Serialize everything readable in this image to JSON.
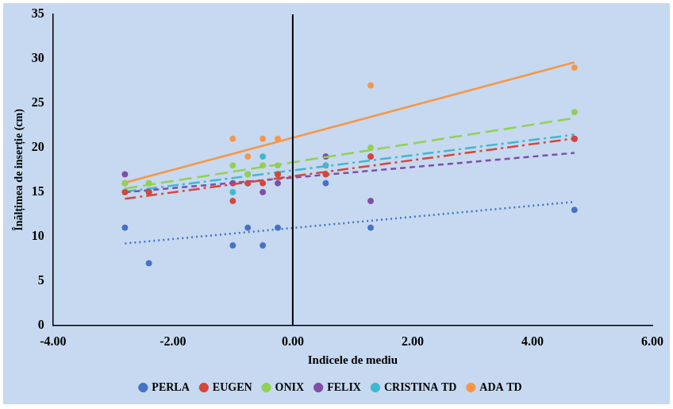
{
  "chart_data": {
    "type": "scatter",
    "x_label": "Indicele de mediu",
    "y_label": "Înălțimea de inserție (cm)",
    "x": [
      -2.8,
      -2.4,
      -1.0,
      -0.75,
      -0.5,
      -0.25,
      0.55,
      1.3,
      4.7
    ],
    "series": [
      {
        "name": "PERLA",
        "color": "#4472c4",
        "marker": "circle",
        "line_style": "dotted",
        "values": [
          11,
          7,
          9,
          11,
          9,
          11,
          16,
          11,
          13
        ]
      },
      {
        "name": "EUGEN",
        "color": "#d9453b",
        "marker": "circle",
        "line_style": "dashdot",
        "values": [
          15,
          15,
          14,
          16,
          16,
          17,
          17,
          19,
          21
        ]
      },
      {
        "name": "ONIX",
        "color": "#92d050",
        "marker": "circle",
        "line_style": "longdash",
        "values": [
          16,
          16,
          18,
          17,
          18,
          18,
          17,
          20,
          24
        ]
      },
      {
        "name": "FELIX",
        "color": "#7e4fa8",
        "marker": "circle",
        "line_style": "dashed",
        "values": [
          17,
          15,
          16,
          16,
          15,
          16,
          19,
          14,
          21
        ]
      },
      {
        "name": "CRISTINA TD",
        "color": "#3fb8d0",
        "marker": "circle",
        "line_style": "dashdot",
        "values": [
          15,
          15,
          15,
          17,
          19,
          17,
          18,
          19,
          21
        ]
      },
      {
        "name": "ADA TD",
        "color": "#f79646",
        "marker": "circle",
        "line_style": "solid",
        "values": [
          16,
          16,
          21,
          19,
          21,
          21,
          18,
          27,
          29
        ]
      }
    ],
    "xlim": [
      -4,
      6
    ],
    "xticks": [
      {
        "value": -4,
        "label": "-4.00"
      },
      {
        "value": -2,
        "label": "-2.00"
      },
      {
        "value": 0,
        "label": "0.00"
      },
      {
        "value": 2,
        "label": "2.00"
      },
      {
        "value": 4,
        "label": "4.00"
      },
      {
        "value": 6,
        "label": "6.00"
      }
    ],
    "ylim": [
      0,
      35
    ],
    "yticks": [
      0,
      5,
      10,
      15,
      20,
      25,
      30,
      35
    ],
    "grid": false,
    "legend": "bottom"
  }
}
